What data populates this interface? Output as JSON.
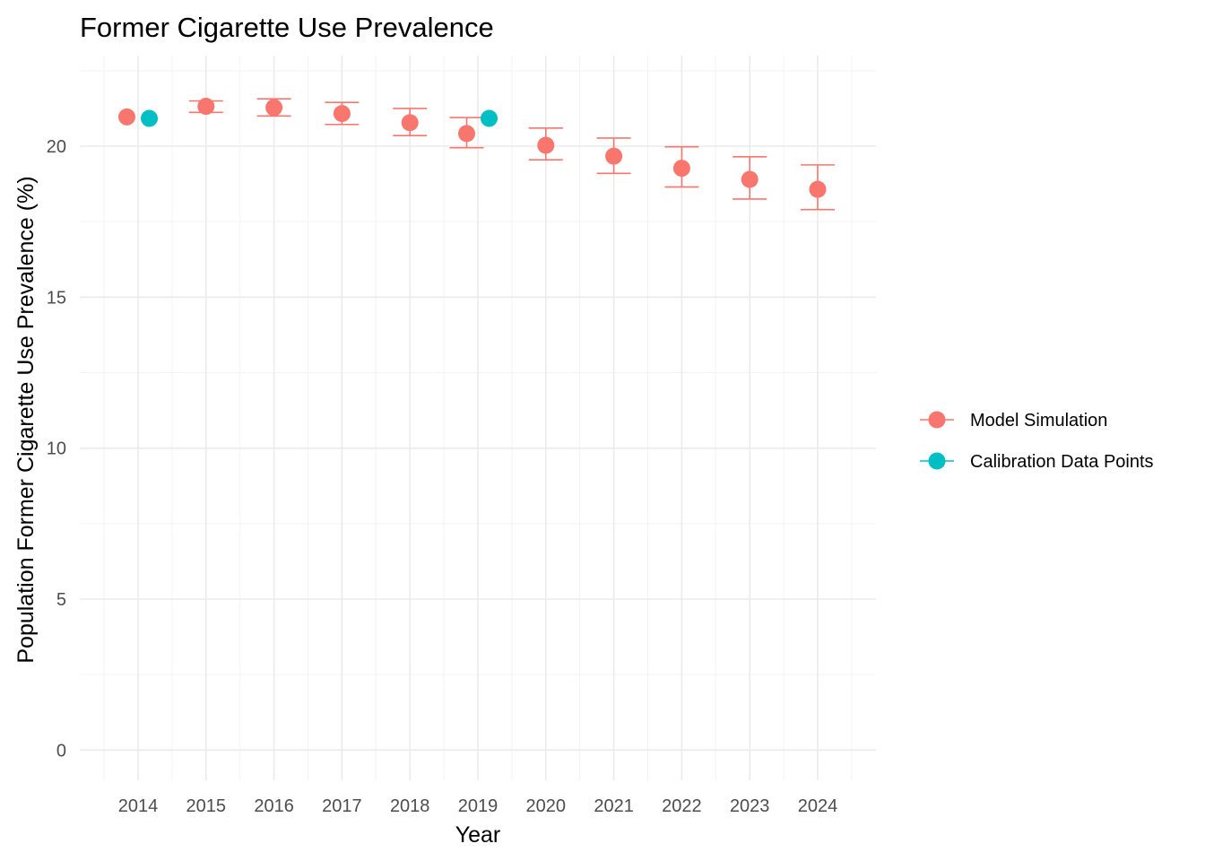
{
  "chart_data": {
    "type": "scatter",
    "title": "Former Cigarette Use Prevalence",
    "xlabel": "Year",
    "ylabel": "Population Former Cigarette Use Prevalence (%)",
    "ylim": [
      -1,
      23
    ],
    "xlim": [
      2013.5,
      2024.5
    ],
    "y_ticks": [
      0,
      5,
      10,
      15,
      20
    ],
    "categories": [
      "2014",
      "2015",
      "2016",
      "2017",
      "2018",
      "2019",
      "2020",
      "2021",
      "2022",
      "2023",
      "2024"
    ],
    "grid": true,
    "legend_position": "right",
    "series": [
      {
        "name": "Model Simulation",
        "color": "#F8766D",
        "points": [
          {
            "x": "2014",
            "y": 20.97
          },
          {
            "x": "2015",
            "y": 21.32,
            "low": 21.12,
            "high": 21.5
          },
          {
            "x": "2016",
            "y": 21.28,
            "low": 21.0,
            "high": 21.57
          },
          {
            "x": "2017",
            "y": 21.08,
            "low": 20.72,
            "high": 21.45
          },
          {
            "x": "2018",
            "y": 20.78,
            "low": 20.35,
            "high": 21.25
          },
          {
            "x": "2019",
            "y": 20.42,
            "low": 19.95,
            "high": 20.95
          },
          {
            "x": "2020",
            "y": 20.03,
            "low": 19.55,
            "high": 20.6
          },
          {
            "x": "2021",
            "y": 19.67,
            "low": 19.1,
            "high": 20.27
          },
          {
            "x": "2022",
            "y": 19.27,
            "low": 18.65,
            "high": 19.98
          },
          {
            "x": "2023",
            "y": 18.9,
            "low": 18.25,
            "high": 19.65
          },
          {
            "x": "2024",
            "y": 18.57,
            "low": 17.9,
            "high": 19.38
          }
        ]
      },
      {
        "name": "Calibration Data Points",
        "color": "#00BFC4",
        "points": [
          {
            "x": "2014",
            "y": 20.92
          },
          {
            "x": "2019",
            "y": 20.92
          }
        ]
      }
    ]
  }
}
